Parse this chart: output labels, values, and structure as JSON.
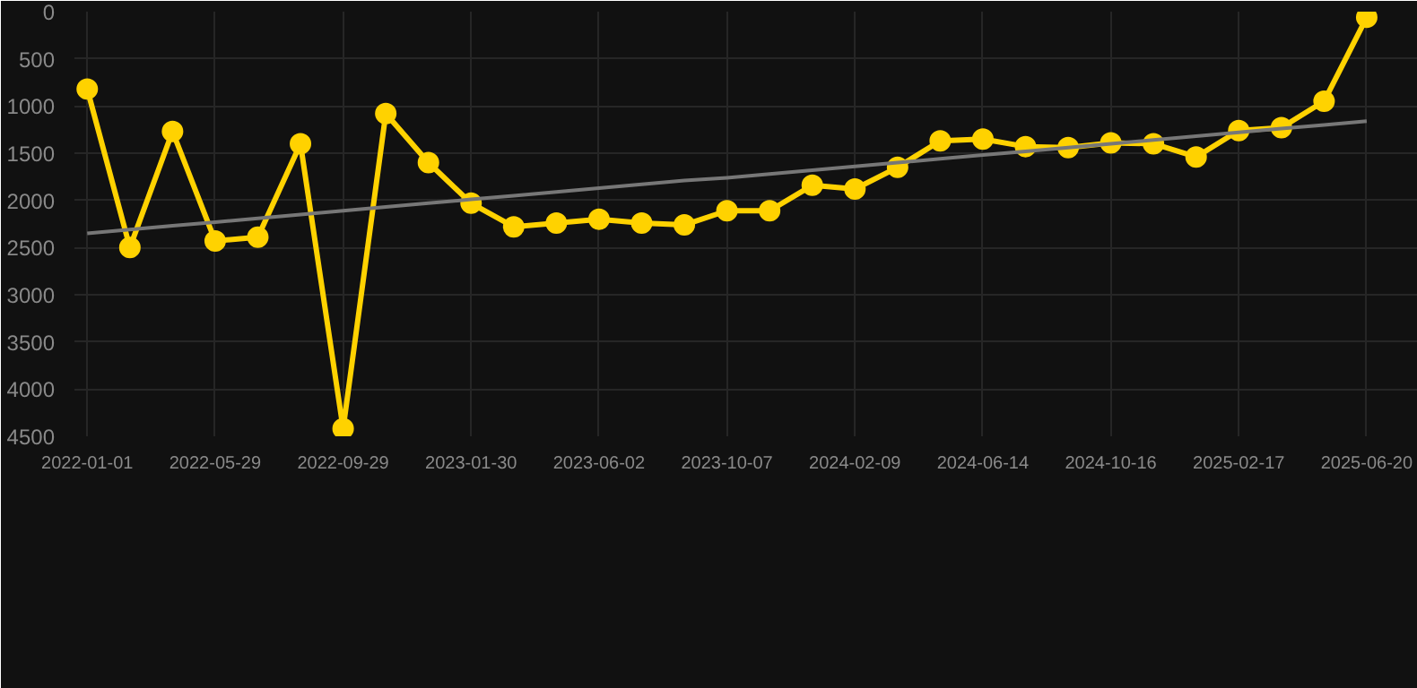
{
  "chart_data": {
    "type": "line",
    "categories": [
      "2022-01-01",
      null,
      null,
      "2022-05-29",
      null,
      null,
      "2022-09-29",
      null,
      null,
      "2023-01-30",
      null,
      null,
      "2023-06-02",
      null,
      null,
      "2023-10-07",
      null,
      null,
      "2024-02-09",
      null,
      null,
      "2024-06-14",
      null,
      null,
      "2024-10-16",
      null,
      null,
      "2025-02-17",
      null,
      null,
      "2025-06-20"
    ],
    "series": [
      {
        "color": "#ffd200",
        "marker": "circle",
        "values": [
          820,
          2500,
          1270,
          2430,
          2390,
          1400,
          4420,
          1080,
          1600,
          2030,
          2280,
          2240,
          2200,
          2240,
          2260,
          2110,
          2110,
          1840,
          1880,
          1650,
          1370,
          1350,
          1430,
          1440,
          1390,
          1400,
          1540,
          1260,
          1230,
          950,
          60
        ]
      },
      {
        "color": "#777777",
        "marker": "none",
        "values": [
          2350,
          2310,
          2270,
          2230,
          2190,
          2150,
          2110,
          2070,
          2030,
          1990,
          1950,
          1910,
          1870,
          1830,
          1790,
          1760,
          1720,
          1680,
          1640,
          1600,
          1560,
          1520,
          1480,
          1440,
          1400,
          1360,
          1320,
          1280,
          1240,
          1200,
          1160
        ]
      }
    ],
    "ylim": [
      4500,
      0
    ],
    "yticks": [
      0,
      500,
      1000,
      1500,
      2000,
      2500,
      3000,
      3500,
      4000,
      4500
    ],
    "grid": true
  }
}
